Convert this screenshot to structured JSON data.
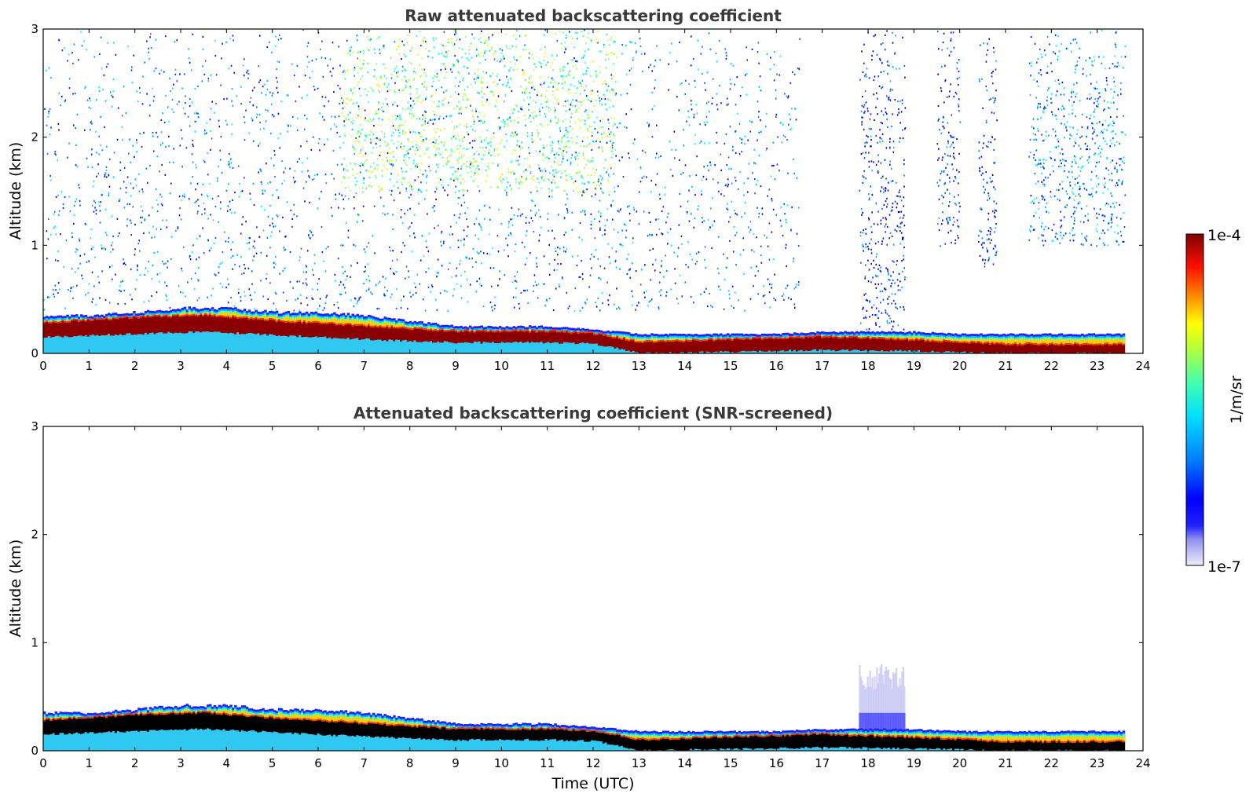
{
  "chart_data": [
    {
      "type": "heatmap",
      "title": "Raw attenuated backscattering coefficient",
      "xlabel": "",
      "ylabel": "Altitude (km)",
      "xlim": [
        0,
        24
      ],
      "ylim": [
        0,
        3
      ],
      "xticks": [
        "0",
        "1",
        "2",
        "3",
        "4",
        "5",
        "6",
        "7",
        "8",
        "9",
        "10",
        "11",
        "12",
        "13",
        "14",
        "15",
        "16",
        "17",
        "18",
        "19",
        "20",
        "21",
        "22",
        "23",
        "24"
      ],
      "yticks": [
        "0",
        "1",
        "2",
        "3"
      ],
      "data_end_time": 23.6,
      "layer_top_km": [
        [
          0,
          0.35
        ],
        [
          1,
          0.35
        ],
        [
          2,
          0.38
        ],
        [
          3,
          0.42
        ],
        [
          4,
          0.42
        ],
        [
          5,
          0.38
        ],
        [
          6,
          0.38
        ],
        [
          7,
          0.35
        ],
        [
          8,
          0.3
        ],
        [
          9,
          0.25
        ],
        [
          10,
          0.25
        ],
        [
          11,
          0.25
        ],
        [
          12,
          0.22
        ],
        [
          13,
          0.18
        ],
        [
          14,
          0.18
        ],
        [
          15,
          0.18
        ],
        [
          16,
          0.18
        ],
        [
          17,
          0.2
        ],
        [
          18,
          0.2
        ],
        [
          19,
          0.2
        ],
        [
          20,
          0.18
        ],
        [
          21,
          0.18
        ],
        [
          22,
          0.18
        ],
        [
          23,
          0.18
        ],
        [
          23.6,
          0.18
        ]
      ],
      "saturated_band_km": [
        [
          0,
          0.15,
          0.28
        ],
        [
          2,
          0.18,
          0.33
        ],
        [
          3.5,
          0.2,
          0.35
        ],
        [
          5,
          0.17,
          0.3
        ],
        [
          7,
          0.13,
          0.25
        ],
        [
          9,
          0.1,
          0.2
        ],
        [
          11,
          0.1,
          0.2
        ],
        [
          12,
          0.09,
          0.18
        ],
        [
          13,
          0.0,
          0.1
        ],
        [
          17,
          0.03,
          0.15
        ],
        [
          19,
          0.02,
          0.12
        ],
        [
          21,
          0.0,
          0.08
        ],
        [
          23.6,
          0.0,
          0.08
        ]
      ],
      "noise_regions": [
        {
          "t0": 0,
          "t1": 16.5,
          "z0": 0.4,
          "z1": 3,
          "value_log10": -6.3
        },
        {
          "t0": 6.5,
          "t1": 12.5,
          "z0": 1.5,
          "z1": 3,
          "value_log10": -5.5
        },
        {
          "t0": 17.8,
          "t1": 18.8,
          "z0": 0.2,
          "z1": 3,
          "value_log10": -6.5
        },
        {
          "t0": 19.5,
          "t1": 20.0,
          "z0": 1.0,
          "z1": 3,
          "value_log10": -6.5
        },
        {
          "t0": 20.4,
          "t1": 20.8,
          "z0": 0.8,
          "z1": 3,
          "value_log10": -6.5
        },
        {
          "t0": 21.5,
          "t1": 23.6,
          "z0": 1.0,
          "z1": 3,
          "value_log10": -6.2
        }
      ]
    },
    {
      "type": "heatmap",
      "title": "Attenuated backscattering coefficient (SNR-screened)",
      "xlabel": "Time (UTC)",
      "ylabel": "Altitude (km)",
      "xlim": [
        0,
        24
      ],
      "ylim": [
        0,
        3
      ],
      "xticks": [
        "0",
        "1",
        "2",
        "3",
        "4",
        "5",
        "6",
        "7",
        "8",
        "9",
        "10",
        "11",
        "12",
        "13",
        "14",
        "15",
        "16",
        "17",
        "18",
        "19",
        "20",
        "21",
        "22",
        "23",
        "24"
      ],
      "yticks": [
        "0",
        "1",
        "2",
        "3"
      ],
      "data_end_time": 23.6,
      "layer_top_km": [
        [
          0,
          0.35
        ],
        [
          1,
          0.35
        ],
        [
          2,
          0.38
        ],
        [
          3,
          0.42
        ],
        [
          4,
          0.42
        ],
        [
          5,
          0.38
        ],
        [
          6,
          0.38
        ],
        [
          7,
          0.35
        ],
        [
          8,
          0.3
        ],
        [
          9,
          0.25
        ],
        [
          10,
          0.25
        ],
        [
          11,
          0.25
        ],
        [
          12,
          0.22
        ],
        [
          13,
          0.18
        ],
        [
          14,
          0.18
        ],
        [
          15,
          0.18
        ],
        [
          16,
          0.18
        ],
        [
          17,
          0.2
        ],
        [
          18,
          0.2
        ],
        [
          19,
          0.2
        ],
        [
          20,
          0.18
        ],
        [
          21,
          0.18
        ],
        [
          22,
          0.18
        ],
        [
          23,
          0.18
        ],
        [
          23.6,
          0.18
        ]
      ],
      "screened_black_band_km": [
        [
          0,
          0.15,
          0.28
        ],
        [
          2,
          0.18,
          0.33
        ],
        [
          3.5,
          0.2,
          0.35
        ],
        [
          5,
          0.17,
          0.3
        ],
        [
          7,
          0.13,
          0.25
        ],
        [
          9,
          0.1,
          0.2
        ],
        [
          11,
          0.1,
          0.2
        ],
        [
          12,
          0.09,
          0.18
        ],
        [
          13,
          0.0,
          0.1
        ],
        [
          17,
          0.03,
          0.15
        ],
        [
          19,
          0.02,
          0.12
        ],
        [
          21,
          0.0,
          0.08
        ],
        [
          23.6,
          0.0,
          0.08
        ]
      ],
      "aerosol_plume": {
        "t0": 17.8,
        "t1": 18.8,
        "z_top": 0.8,
        "value_log10": -6.6
      }
    }
  ],
  "colorbar": {
    "label": "1/m/sr",
    "max_label": "1e-4",
    "min_label": "1e-7",
    "scale": "log",
    "range": [
      1e-07,
      0.0001
    ],
    "colormap": "jet",
    "low_colors": [
      "#e8e8f8",
      "#b8b8f0",
      "#8888f0",
      "#5050f0"
    ]
  }
}
